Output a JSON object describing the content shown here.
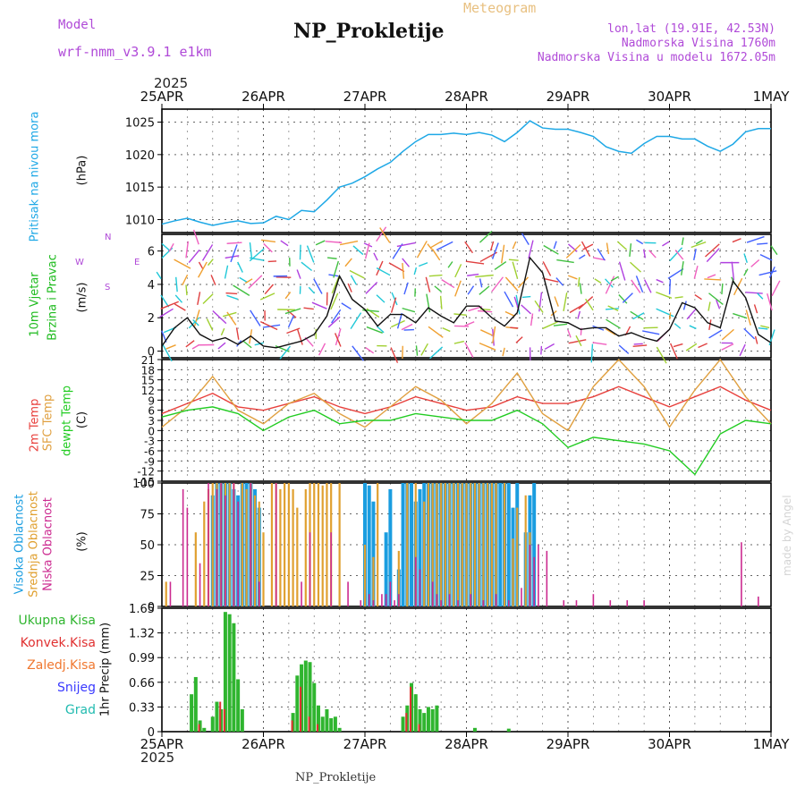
{
  "header": {
    "model_label": "Model",
    "model_name": "wrf-nmm_v3.9.1  e1km",
    "meteogram_label": "Meteogram",
    "title": "NP_Prokletije",
    "lonlat": "lon,lat (19.91E, 42.53N)",
    "elevation": "Nadmorska Visina 1760m",
    "model_elevation": "Nadmorska Visina u modelu 1672.05m",
    "year_top": "2025",
    "year_bottom": "2025",
    "footer": "NP_Prokletije",
    "credit": "made by Angel"
  },
  "colors": {
    "pressure": "#1ea8e6",
    "temp2m": "#e8403c",
    "sfc": "#e0a040",
    "dewpt": "#22cc22",
    "high_cloud": "#1a9de0",
    "mid_cloud": "#e0a030",
    "low_cloud": "#cc2a90",
    "precip_total": "#2fb52f",
    "precip_conv": "#e03030",
    "precip_frz": "#f07830",
    "snow": "#3a3aff",
    "graupel": "#22bbb0"
  },
  "dates": [
    "25APR",
    "26APR",
    "27APR",
    "28APR",
    "29APR",
    "30APR",
    "1MAY"
  ],
  "panel_labels": {
    "pressure": [
      "Pritisak na nivou mora",
      "(hPa)"
    ],
    "wind": [
      "10m Vjetar",
      "Brzina i Pravac",
      "(m/s)"
    ],
    "compass": {
      "n": "N",
      "s": "S",
      "w": "W",
      "e": "E"
    },
    "temp": [
      "2m Temp",
      "SFC Temp",
      "dewpt Temp",
      "(C)"
    ],
    "cloud": [
      "Visoka Oblacnost",
      "Srednja Oblacnost",
      "Niska Oblacnost",
      "(%)"
    ],
    "precip_unit": "1hr Precip (mm)",
    "precip_legend": [
      "Ukupna Kisa",
      "Konvek.Kisa",
      "Zaledj.Kisa",
      "Snijeg",
      "Grad"
    ]
  },
  "chart_data": [
    {
      "type": "line",
      "name": "pressure",
      "x_unit": "hours since 25APR 00Z",
      "ylim": [
        1008,
        1027
      ],
      "yticks": [
        1010,
        1015,
        1020,
        1025
      ],
      "grid": true,
      "series": [
        {
          "x": [
            0,
            3,
            6,
            9,
            12,
            15,
            18,
            21,
            24,
            27,
            30,
            33,
            36,
            39,
            42,
            45,
            48,
            51,
            54,
            57,
            60,
            63,
            66,
            69,
            72,
            75,
            78,
            81,
            84,
            87,
            90,
            93,
            96,
            99,
            102,
            105,
            108,
            111,
            114,
            117,
            120,
            123,
            126,
            129,
            132,
            135,
            138,
            141,
            144
          ],
          "y": [
            1009.3,
            1009.8,
            1010.2,
            1009.6,
            1009.1,
            1009.5,
            1009.8,
            1009.4,
            1009.5,
            1010.5,
            1010.0,
            1011.4,
            1011.2,
            1013.0,
            1015.0,
            1015.6,
            1016.6,
            1017.8,
            1018.8,
            1020.5,
            1022.0,
            1023.1,
            1023.1,
            1023.3,
            1023.1,
            1023.4,
            1023.0,
            1022.0,
            1023.4,
            1025.2,
            1024.1,
            1023.9,
            1023.9,
            1023.4,
            1022.8,
            1021.2,
            1020.5,
            1020.2,
            1021.7,
            1022.8,
            1022.8,
            1022.4,
            1022.4,
            1021.3,
            1020.5,
            1021.6,
            1023.5,
            1024.0,
            1024.0
          ]
        }
      ]
    },
    {
      "type": "line",
      "name": "wind_speed",
      "x_unit": "hours since 25APR 00Z",
      "ylim": [
        -0.4,
        7
      ],
      "yticks": [
        0,
        2,
        4,
        6
      ],
      "grid": true,
      "series": [
        {
          "x": [
            0,
            3,
            6,
            9,
            12,
            15,
            18,
            21,
            24,
            27,
            30,
            33,
            36,
            39,
            42,
            45,
            48,
            51,
            54,
            57,
            60,
            63,
            66,
            69,
            72,
            75,
            78,
            81,
            84,
            87,
            90,
            93,
            96,
            99,
            102,
            105,
            108,
            111,
            114,
            117,
            120,
            123,
            126,
            129,
            132,
            135,
            138,
            141,
            144
          ],
          "y": [
            0.3,
            1.4,
            2.0,
            1.0,
            0.6,
            0.8,
            0.4,
            0.9,
            0.3,
            0.2,
            0.4,
            0.6,
            1.0,
            2.1,
            4.5,
            3.1,
            2.5,
            1.5,
            2.2,
            2.2,
            1.7,
            2.6,
            2.1,
            1.7,
            2.7,
            2.7,
            2.0,
            1.5,
            2.3,
            5.6,
            4.7,
            1.8,
            1.7,
            1.3,
            1.4,
            1.4,
            0.9,
            1.1,
            0.8,
            0.6,
            1.3,
            2.9,
            2.6,
            1.7,
            1.4,
            4.2,
            3.2,
            1.0,
            0.5
          ]
        }
      ]
    },
    {
      "type": "line",
      "name": "temperature",
      "x_unit": "hours since 25APR 00Z",
      "ylim": [
        -15,
        21
      ],
      "yticks": [
        -15,
        -12,
        -9,
        -6,
        -3,
        0,
        3,
        6,
        9,
        12,
        15,
        18,
        21
      ],
      "grid": true,
      "series": [
        {
          "name": "2m Temp",
          "x": [
            0,
            6,
            12,
            18,
            24,
            30,
            36,
            42,
            48,
            54,
            60,
            66,
            72,
            78,
            84,
            90,
            96,
            102,
            108,
            114,
            120,
            126,
            132,
            138,
            144
          ],
          "y": [
            5,
            8,
            11,
            7,
            6,
            8,
            10,
            7,
            5,
            7,
            10,
            8,
            6,
            7,
            10,
            8,
            8,
            10,
            13,
            10,
            7,
            10,
            13,
            9,
            6
          ]
        },
        {
          "name": "SFC Temp",
          "x": [
            0,
            6,
            12,
            18,
            24,
            30,
            36,
            42,
            48,
            54,
            60,
            66,
            72,
            78,
            84,
            90,
            96,
            102,
            108,
            114,
            120,
            126,
            132,
            138,
            144
          ],
          "y": [
            1,
            7,
            16,
            6,
            2,
            8,
            11,
            5,
            1,
            7,
            13,
            9,
            2,
            8,
            17,
            5,
            0,
            13,
            21,
            13,
            1,
            12,
            21,
            10,
            2
          ]
        },
        {
          "name": "dewpt Temp",
          "x": [
            0,
            6,
            12,
            18,
            24,
            30,
            36,
            42,
            48,
            54,
            60,
            66,
            72,
            78,
            84,
            90,
            96,
            102,
            108,
            114,
            120,
            126,
            132,
            138,
            144
          ],
          "y": [
            4,
            6,
            7,
            5,
            0,
            4,
            6,
            2,
            3,
            3,
            5,
            4,
            3,
            3,
            6,
            2,
            -5,
            -2,
            -3,
            -4,
            -6,
            -13,
            -1,
            3,
            2
          ]
        }
      ]
    },
    {
      "type": "bar",
      "name": "cloud_cover",
      "x_unit": "hours since 25APR 00Z",
      "ylim": [
        0,
        100
      ],
      "yticks": [
        0,
        25,
        50,
        75,
        100
      ],
      "grid": true,
      "series": [
        {
          "name": "Visoka Oblacnost",
          "x": [
            12,
            13,
            14,
            15,
            16,
            17,
            18,
            19,
            20,
            21,
            22,
            23,
            48,
            49,
            50,
            53,
            54,
            56,
            57,
            58,
            59,
            60,
            61,
            62,
            63,
            64,
            65,
            66,
            67,
            68,
            69,
            70,
            71,
            72,
            73,
            74,
            75,
            76,
            77,
            78,
            79,
            80,
            81,
            82,
            83,
            84,
            86,
            87,
            88
          ],
          "y": [
            90,
            100,
            100,
            100,
            100,
            95,
            90,
            100,
            100,
            100,
            95,
            80,
            100,
            98,
            85,
            60,
            95,
            30,
            100,
            100,
            100,
            85,
            95,
            100,
            100,
            100,
            100,
            100,
            100,
            100,
            100,
            100,
            100,
            100,
            100,
            100,
            100,
            100,
            100,
            100,
            100,
            100,
            100,
            100,
            80,
            100,
            60,
            90,
            100
          ]
        },
        {
          "name": "Srednja Oblacnost",
          "x": [
            1,
            8,
            10,
            11,
            12,
            13,
            14,
            15,
            16,
            17,
            19,
            20,
            21,
            22,
            23,
            24,
            26,
            27,
            28,
            29,
            30,
            31,
            32,
            34,
            35,
            36,
            37,
            38,
            39,
            40,
            42,
            48,
            50,
            51,
            56,
            58,
            60,
            62,
            63,
            64,
            65,
            66,
            67,
            68,
            69,
            70,
            71,
            72,
            73,
            74,
            75,
            76,
            77,
            78,
            79,
            81,
            83,
            84,
            86,
            87
          ],
          "y": [
            20,
            60,
            85,
            95,
            100,
            100,
            100,
            100,
            100,
            100,
            100,
            95,
            100,
            90,
            85,
            60,
            100,
            100,
            95,
            100,
            100,
            95,
            80,
            95,
            100,
            100,
            100,
            98,
            100,
            100,
            100,
            50,
            40,
            100,
            45,
            100,
            100,
            85,
            100,
            100,
            100,
            100,
            100,
            100,
            100,
            100,
            100,
            100,
            100,
            100,
            100,
            100,
            100,
            100,
            100,
            100,
            55,
            80,
            90,
            60
          ]
        },
        {
          "name": "Niska Oblacnost",
          "x": [
            2,
            5,
            6,
            9,
            11,
            13,
            14,
            15,
            17,
            18,
            21,
            23,
            27,
            33,
            35,
            40,
            44,
            47,
            49,
            50,
            52,
            53,
            54,
            55,
            56,
            60,
            61,
            64,
            65,
            66,
            68,
            70,
            73,
            76,
            79,
            82,
            85,
            87,
            88,
            89,
            91,
            95,
            98,
            102,
            106,
            110,
            114,
            137,
            141
          ],
          "y": [
            20,
            95,
            80,
            35,
            100,
            95,
            100,
            90,
            100,
            85,
            100,
            20,
            100,
            20,
            60,
            60,
            20,
            5,
            10,
            5,
            10,
            10,
            20,
            5,
            10,
            40,
            30,
            20,
            10,
            5,
            10,
            5,
            10,
            5,
            10,
            5,
            15,
            50,
            40,
            50,
            45,
            5,
            5,
            10,
            5,
            5,
            5,
            52,
            8
          ]
        }
      ]
    },
    {
      "type": "bar",
      "name": "precipitation",
      "x_unit": "hours since 25APR 00Z",
      "ylim": [
        0,
        1.65
      ],
      "yticks": [
        0,
        0.33,
        0.66,
        0.99,
        1.32,
        1.65
      ],
      "grid": true,
      "series": [
        {
          "name": "Ukupna Kisa",
          "x": [
            7,
            8,
            9,
            10,
            12,
            13,
            14,
            15,
            16,
            17,
            18,
            19,
            31,
            32,
            33,
            34,
            35,
            36,
            37,
            38,
            39,
            40,
            41,
            42,
            57,
            58,
            59,
            60,
            61,
            62,
            63,
            64,
            65,
            74,
            82
          ],
          "y": [
            0.5,
            0.73,
            0.15,
            0.05,
            0.2,
            0.4,
            0.3,
            1.6,
            1.57,
            1.45,
            0.7,
            0.3,
            0.25,
            0.75,
            0.9,
            0.95,
            0.93,
            0.65,
            0.35,
            0.2,
            0.3,
            0.18,
            0.2,
            0.05,
            0.2,
            0.35,
            0.65,
            0.5,
            0.3,
            0.25,
            0.33,
            0.3,
            0.35,
            0.05,
            0.04
          ]
        },
        {
          "name": "Konvek.Kisa",
          "x": [
            9,
            14,
            15,
            31,
            33,
            35,
            37,
            58,
            59,
            61
          ],
          "y": [
            0.1,
            0.4,
            0.3,
            0.15,
            0.6,
            0.2,
            0.1,
            0.25,
            0.6,
            0.1
          ]
        }
      ]
    }
  ]
}
